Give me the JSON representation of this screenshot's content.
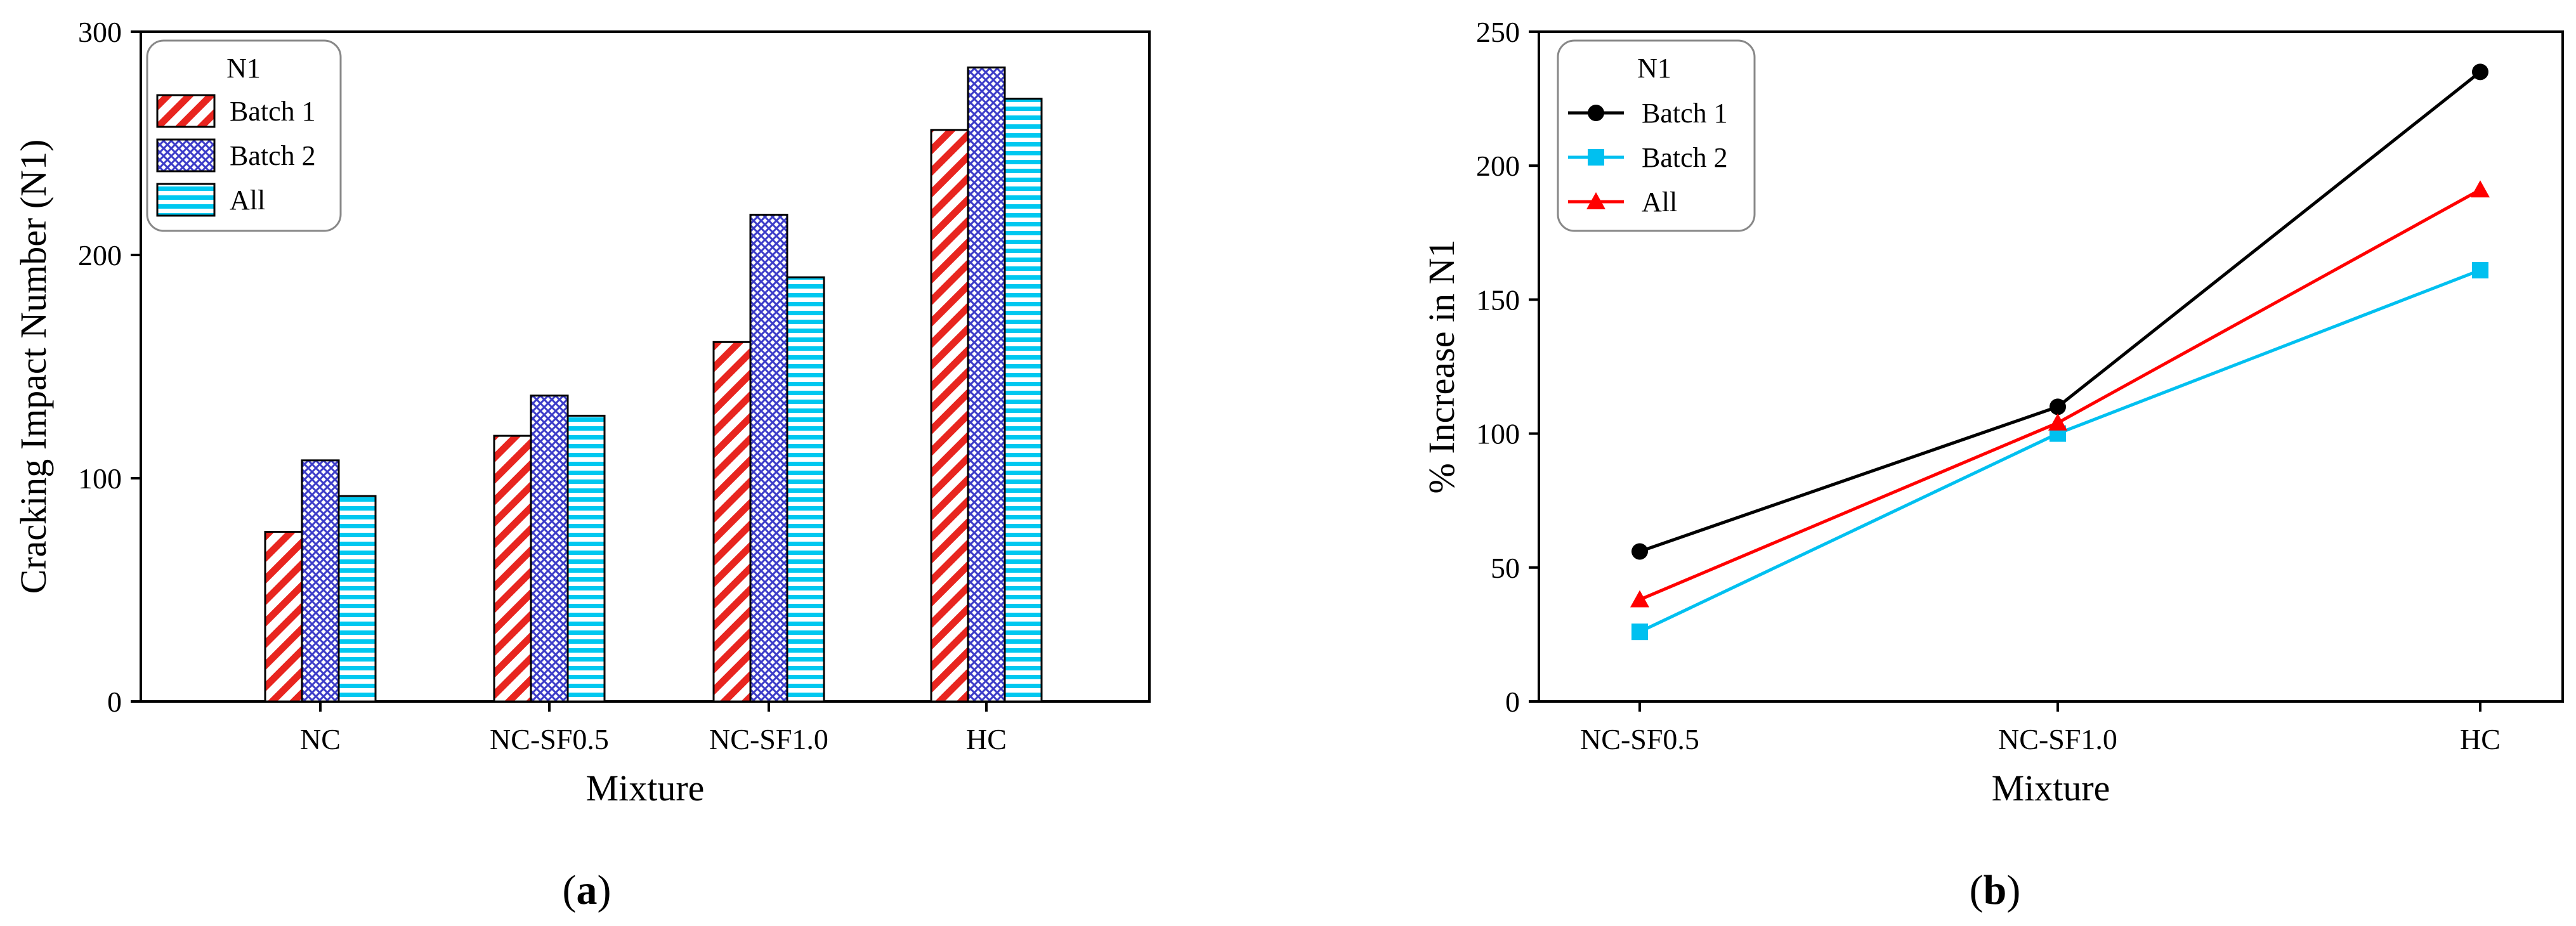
{
  "chart_data": [
    {
      "type": "bar",
      "panel": "a",
      "title": "",
      "xlabel": "Mixture",
      "ylabel": "Cracking Impact Number (N1)",
      "ylim": [
        0,
        300
      ],
      "yticks": [
        0,
        100,
        200,
        300
      ],
      "categories": [
        "NC",
        "NC-SF0.5",
        "NC-SF1.0",
        "HC"
      ],
      "legend_title": "N1",
      "legend_position": "top-left",
      "series": [
        {
          "name": "Batch 1",
          "values": [
            76,
            119,
            161,
            256
          ],
          "color": "#e8251f",
          "pattern": "diagonal-hatch"
        },
        {
          "name": "Batch 2",
          "values": [
            108,
            137,
            218,
            284
          ],
          "color": "#3c3cc8",
          "pattern": "crosshatch"
        },
        {
          "name": "All",
          "values": [
            92,
            128,
            190,
            270
          ],
          "color": "#00c8f0",
          "pattern": "horizontal-lines"
        }
      ],
      "caption": "(a)"
    },
    {
      "type": "line",
      "panel": "b",
      "title": "",
      "xlabel": "Mixture",
      "ylabel": "% Increase in N1",
      "ylim": [
        0,
        250
      ],
      "yticks": [
        0,
        50,
        100,
        150,
        200,
        250
      ],
      "categories": [
        "NC-SF0.5",
        "NC-SF1.0",
        "HC"
      ],
      "legend_title": "N1",
      "legend_position": "top-left",
      "series": [
        {
          "name": "Batch 1",
          "values": [
            56,
            110,
            235
          ],
          "color": "#000000",
          "marker": "circle"
        },
        {
          "name": "Batch 2",
          "values": [
            26,
            100,
            161
          ],
          "color": "#00c0f0",
          "marker": "square"
        },
        {
          "name": "All",
          "values": [
            38,
            104,
            191
          ],
          "color": "#ff0000",
          "marker": "triangle"
        }
      ],
      "caption": "(b)"
    }
  ]
}
